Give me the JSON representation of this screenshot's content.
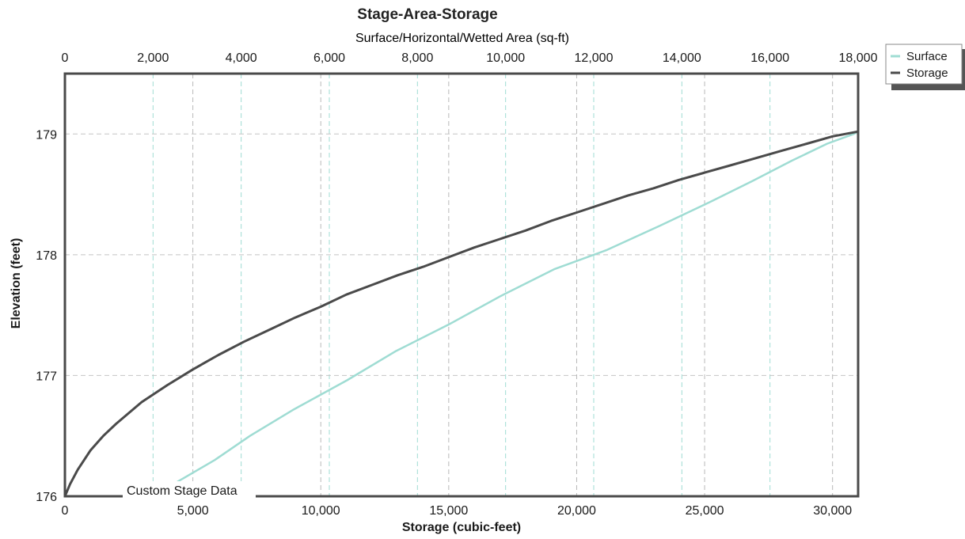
{
  "chart_data": {
    "type": "line",
    "title": "Stage-Area-Storage",
    "xlabel": "Storage (cubic-feet)",
    "x2label": "Surface/Horizontal/Wetted Area (sq-ft)",
    "ylabel": "Elevation  (feet)",
    "xlim": [
      0,
      31000
    ],
    "x2lim": [
      0,
      18000
    ],
    "ylim": [
      176,
      179.5
    ],
    "x_ticks": [
      0,
      5000,
      10000,
      15000,
      20000,
      25000,
      30000
    ],
    "x_tick_labels": [
      "0",
      "5,000",
      "10,000",
      "15,000",
      "20,000",
      "25,000",
      "30,000"
    ],
    "x2_ticks": [
      0,
      2000,
      4000,
      6000,
      8000,
      10000,
      12000,
      14000,
      16000,
      18000
    ],
    "x2_tick_labels": [
      "0",
      "2,000",
      "4,000",
      "6,000",
      "8,000",
      "10,000",
      "12,000",
      "14,000",
      "16,000",
      "18,000"
    ],
    "y_ticks": [
      176,
      177,
      178,
      179
    ],
    "y_tick_labels": [
      "176",
      "177",
      "178",
      "179"
    ],
    "grid": true,
    "legend_position": "top-right",
    "annotation": "Custom Stage Data",
    "series": [
      {
        "name": "Surface",
        "axis": "x2",
        "color": "#9fdcd3",
        "x": [
          2000,
          2600,
          3400,
          4200,
          5200,
          6400,
          7500,
          8700,
          9900,
          11100,
          12300,
          13500,
          14600,
          15600,
          16500,
          17300,
          17900,
          18000
        ],
        "y": [
          176.0,
          176.13,
          176.3,
          176.5,
          176.72,
          176.96,
          177.2,
          177.42,
          177.66,
          177.88,
          178.04,
          178.24,
          178.43,
          178.61,
          178.78,
          178.92,
          179.0,
          179.02
        ]
      },
      {
        "name": "Storage",
        "axis": "x",
        "color": "#4a4a4a",
        "x": [
          0,
          200,
          500,
          1000,
          1500,
          2000,
          3000,
          4000,
          5000,
          6000,
          7000,
          8000,
          9000,
          10000,
          11000,
          12000,
          13000,
          14000,
          15000,
          16000,
          17000,
          18000,
          19000,
          20000,
          21000,
          22000,
          23000,
          24000,
          25000,
          26000,
          27000,
          28000,
          29000,
          30000,
          31000
        ],
        "y": [
          176.0,
          176.1,
          176.22,
          176.38,
          176.5,
          176.6,
          176.78,
          176.92,
          177.05,
          177.17,
          177.28,
          177.38,
          177.48,
          177.57,
          177.67,
          177.75,
          177.83,
          177.9,
          177.98,
          178.06,
          178.13,
          178.2,
          178.28,
          178.35,
          178.42,
          178.49,
          178.55,
          178.62,
          178.68,
          178.74,
          178.8,
          178.86,
          178.92,
          178.98,
          179.02
        ]
      }
    ]
  }
}
